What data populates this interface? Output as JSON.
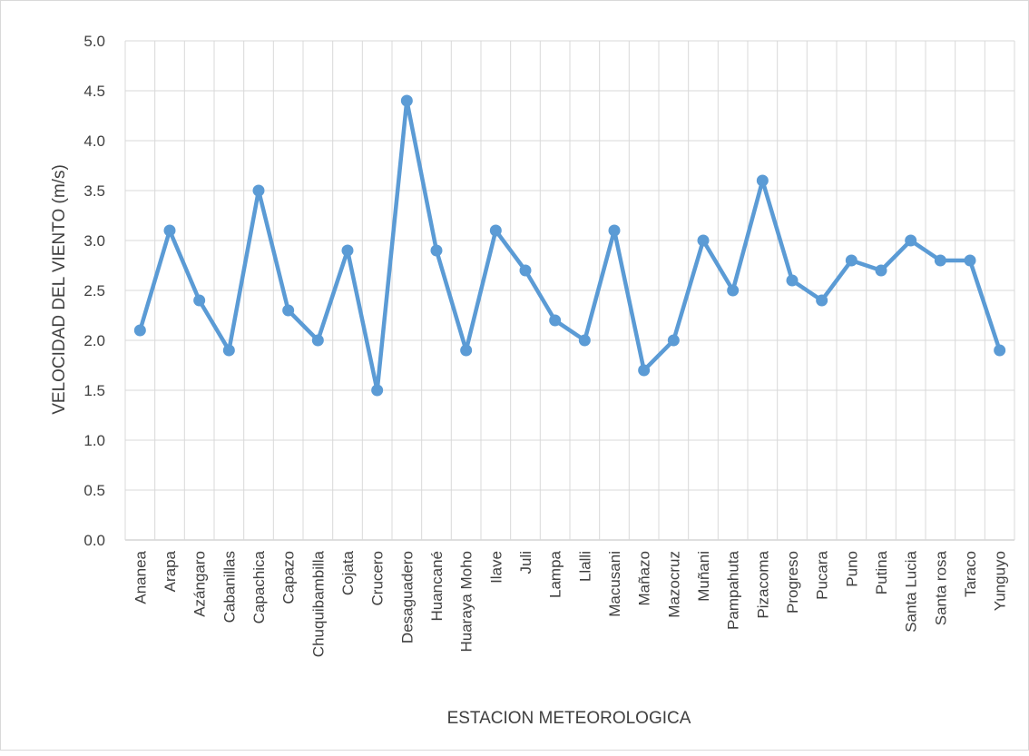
{
  "chart_data": {
    "type": "line",
    "title": "",
    "xlabel": "ESTACION METEOROLOGICA",
    "ylabel": "VELOCIDAD DEL VIENTO (m/s)",
    "ylim": [
      0,
      5
    ],
    "yticks": [
      "0.0",
      "0.5",
      "1.0",
      "1.5",
      "2.0",
      "2.5",
      "3.0",
      "3.5",
      "4.0",
      "4.5",
      "5.0"
    ],
    "grid": true,
    "legend": "none",
    "categories": [
      "Ananea",
      "Arapa",
      "Azángaro",
      "Cabanillas",
      "Capachica",
      "Capazo",
      "Chuquibambilla",
      "Cojata",
      "Crucero",
      "Desaguadero",
      "Huancané",
      "Huaraya Moho",
      "Ilave",
      "Juli",
      "Lampa",
      "Llalli",
      "Macusani",
      "Mañazo",
      "Mazocruz",
      "Muñani",
      "Pampahuta",
      "Pizacoma",
      "Progreso",
      "Pucara",
      "Puno",
      "Putina",
      "Santa Lucia",
      "Santa rosa",
      "Taraco",
      "Yunguyo"
    ],
    "series": [
      {
        "values": [
          2.1,
          3.1,
          2.4,
          1.9,
          3.5,
          2.3,
          2.0,
          2.9,
          1.5,
          4.4,
          2.9,
          1.9,
          3.1,
          2.7,
          2.2,
          2.0,
          3.1,
          1.7,
          2.0,
          3.0,
          2.5,
          3.6,
          2.6,
          2.4,
          2.8,
          2.7,
          3.0,
          2.8,
          2.8,
          1.9
        ]
      }
    ],
    "colors": {
      "line": "#5b9bd5",
      "grid": "#d9d9d9",
      "text": "#404040"
    }
  }
}
